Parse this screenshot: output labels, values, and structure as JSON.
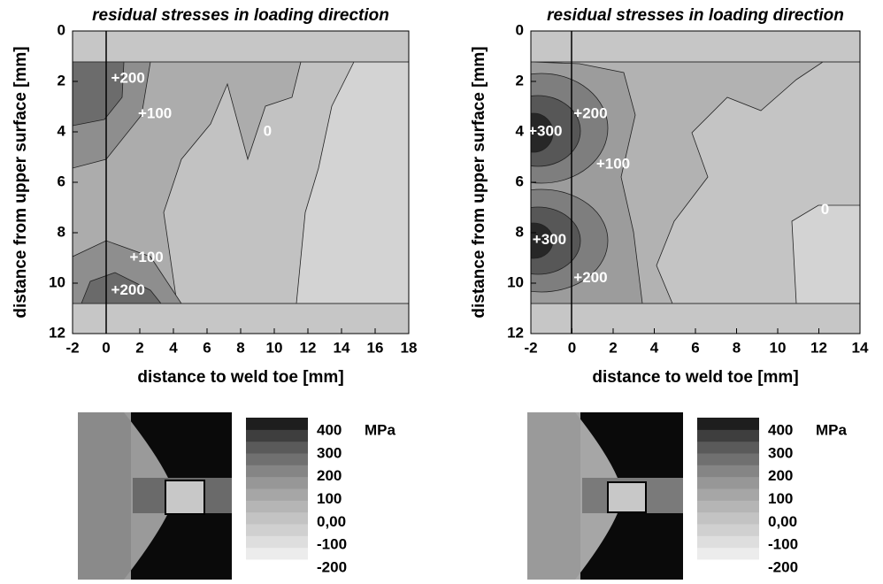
{
  "chart_data": [
    {
      "type": "contour",
      "title": "residual stresses in loading direction",
      "xlabel": "distance to weld toe [mm]",
      "ylabel": "distance from upper surface [mm]",
      "xlim": [
        -2,
        18
      ],
      "ylim": [
        12,
        0
      ],
      "xticks": [
        -2,
        0,
        2,
        4,
        6,
        8,
        10,
        12,
        14,
        16,
        18
      ],
      "yticks": [
        0,
        2,
        4,
        6,
        8,
        10,
        12
      ],
      "annotations": [
        {
          "text": "+200",
          "x": 1.3,
          "y": 1.9
        },
        {
          "text": "+100",
          "x": 2.9,
          "y": 3.3
        },
        {
          "text": "0",
          "x": 9.6,
          "y": 4.0
        },
        {
          "text": "+100",
          "x": 2.4,
          "y": 9.0
        },
        {
          "text": "+200",
          "x": 1.3,
          "y": 10.3
        }
      ],
      "colorbar": {
        "label": "MPa",
        "lim": [
          -200,
          400
        ],
        "ticks": [
          400,
          300,
          200,
          100,
          {
            "value": 0,
            "label": "0,00"
          },
          -100,
          -200
        ],
        "colors": [
          "#ececec",
          "#dedede",
          "#d0d0d0",
          "#c3c3c3",
          "#b5b5b5",
          "#a6a6a6",
          "#979797",
          "#858585",
          "#707070",
          "#5a5a5a",
          "#3e3e3e",
          "#1e1e1e"
        ]
      }
    },
    {
      "type": "contour",
      "title": "residual stresses in loading direction",
      "xlabel": "distance to weld toe [mm]",
      "ylabel": "distance from upper surface [mm]",
      "xlim": [
        -2,
        14
      ],
      "ylim": [
        12,
        0
      ],
      "xticks": [
        -2,
        0,
        2,
        4,
        6,
        8,
        10,
        12,
        14
      ],
      "yticks": [
        0,
        2,
        4,
        6,
        8,
        10,
        12
      ],
      "annotations": [
        {
          "text": "+300",
          "x": -1.3,
          "y": 4.0
        },
        {
          "text": "+200",
          "x": 0.9,
          "y": 3.3
        },
        {
          "text": "+100",
          "x": 2.0,
          "y": 5.3
        },
        {
          "text": "0",
          "x": 12.3,
          "y": 7.1
        },
        {
          "text": "+300",
          "x": -1.1,
          "y": 8.3
        },
        {
          "text": "+200",
          "x": 0.9,
          "y": 9.8
        }
      ],
      "colorbar": {
        "label": "MPa",
        "lim": [
          -200,
          400
        ],
        "ticks": [
          400,
          300,
          200,
          100,
          {
            "value": 0,
            "label": "0,00"
          },
          -100,
          -200
        ],
        "colors": [
          "#ececec",
          "#dedede",
          "#d0d0d0",
          "#c3c3c3",
          "#b5b5b5",
          "#a6a6a6",
          "#979797",
          "#858585",
          "#707070",
          "#5a5a5a",
          "#3e3e3e",
          "#1e1e1e"
        ]
      }
    }
  ]
}
